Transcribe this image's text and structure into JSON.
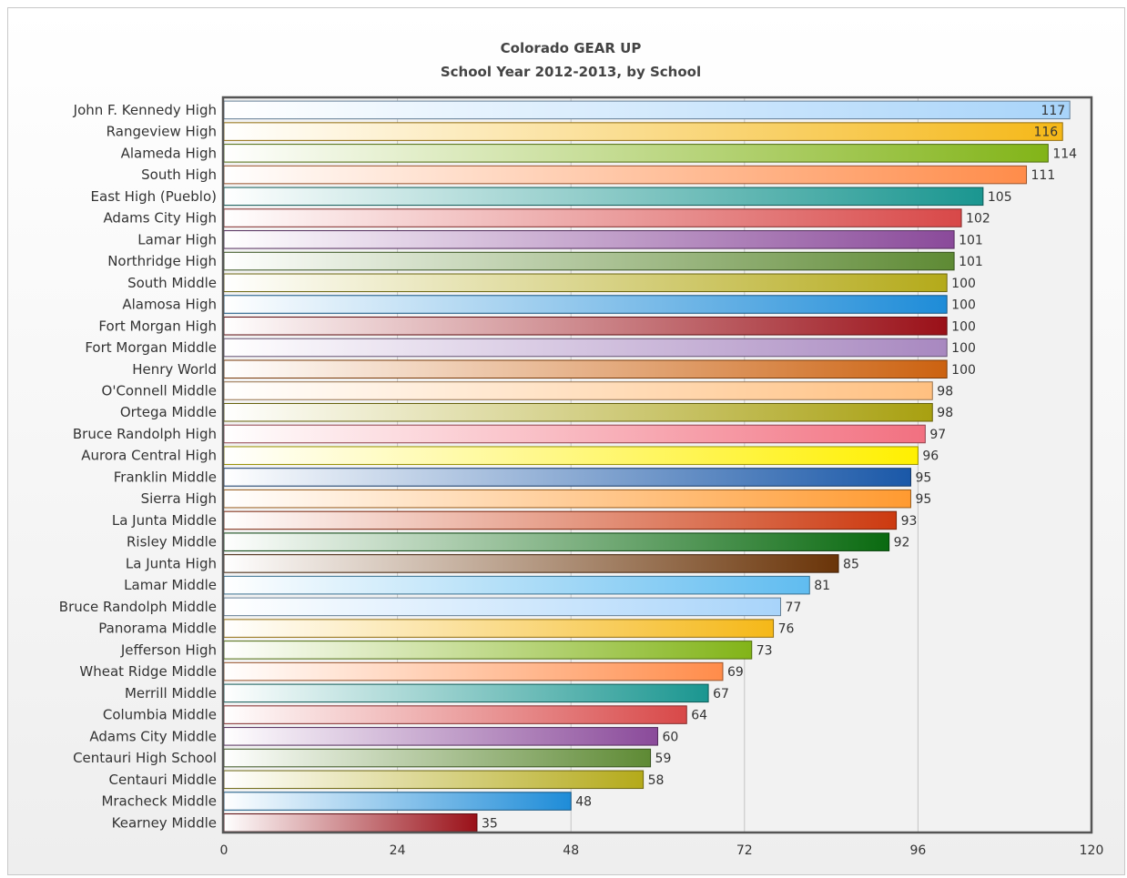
{
  "chart_data": {
    "type": "bar",
    "orientation": "horizontal",
    "title": "Colorado GEAR UP",
    "subtitle": "School Year 2012-2013, by School",
    "xlabel": "",
    "ylabel": "",
    "xlim": [
      0,
      120
    ],
    "x_ticks": [
      0,
      24,
      48,
      72,
      96,
      120
    ],
    "grid": true,
    "categories": [
      "John F. Kennedy High",
      "Rangeview High",
      "Alameda High",
      "South High",
      "East High (Pueblo)",
      "Adams City High",
      "Lamar High",
      "Northridge High",
      "South Middle",
      "Alamosa High",
      "Fort Morgan High",
      "Fort Morgan Middle",
      "Henry World",
      "O'Connell Middle",
      "Ortega Middle",
      "Bruce Randolph High",
      "Aurora Central High",
      "Franklin Middle",
      "Sierra High",
      "La Junta Middle",
      "Risley Middle",
      "La Junta High",
      "Lamar Middle",
      "Bruce Randolph Middle",
      "Panorama Middle",
      "Jefferson High",
      "Wheat Ridge Middle",
      "Merrill Middle",
      "Columbia Middle",
      "Adams City Middle",
      "Centauri High School",
      "Centauri Middle",
      "Mracheck Middle",
      "Kearney Middle"
    ],
    "values": [
      117,
      116,
      114,
      111,
      105,
      102,
      101,
      101,
      100,
      100,
      100,
      100,
      100,
      98,
      98,
      97,
      96,
      95,
      95,
      93,
      92,
      85,
      81,
      77,
      76,
      73,
      69,
      67,
      64,
      60,
      59,
      58,
      48,
      35
    ],
    "colors": [
      "#a8d4fa",
      "#f5b818",
      "#82b418",
      "#ff8c4a",
      "#1a9690",
      "#d84848",
      "#8a4a9a",
      "#5e8a34",
      "#b4aa1a",
      "#1e8cd8",
      "#9a1018",
      "#a888c0",
      "#cc6210",
      "#ffc080",
      "#a8a010",
      "#f27080",
      "#fff000",
      "#1a58a8",
      "#ff9a30",
      "#cc3a10",
      "#0a6a10",
      "#6a3408",
      "#60bcf0",
      "#a8d4fa",
      "#f5b818",
      "#82b418",
      "#ff8c4a",
      "#1a9690",
      "#d84848",
      "#8a4a9a",
      "#5e8a34",
      "#b4aa1a",
      "#1e8cd8",
      "#9a1018"
    ]
  }
}
